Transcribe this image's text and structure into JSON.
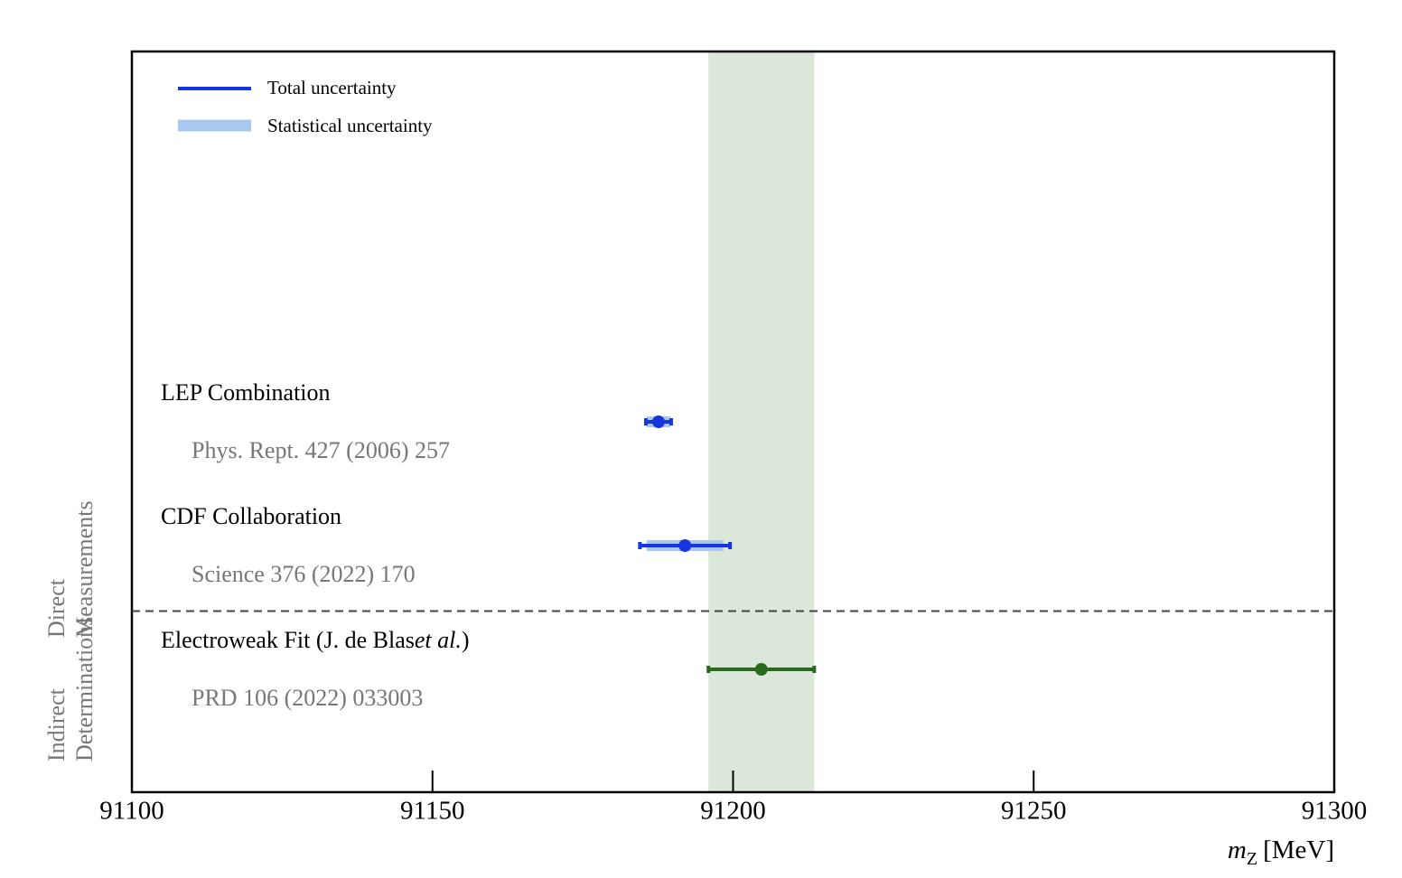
{
  "chart_data": {
    "type": "errorbar",
    "xlabel": {
      "symbol": "m",
      "subscript": "Z",
      "unit": "[MeV]"
    },
    "xlim": [
      91100,
      91300
    ],
    "xticks": [
      91100,
      91150,
      91200,
      91250,
      91300
    ],
    "legend": {
      "position": "upper left",
      "total": "Total uncertainty",
      "stat": "Statistical uncertainty"
    },
    "total_color": "#1535e0",
    "stat_color": "#a8c8f2",
    "band_color": "#dbe7d8",
    "groups": [
      {
        "lines": [
          "Direct",
          "Measurements"
        ],
        "rows": [
          {
            "label": [
              {
                "text": "LEP Combination"
              }
            ],
            "reference": "Phys. Rept. 427 (2006) 257",
            "value": 91187.6,
            "error": 2.1,
            "stat_error": 2.0,
            "color": "#1535e0"
          },
          {
            "label": [
              {
                "text": "CDF Collaboration"
              }
            ],
            "reference": "Science 376 (2022) 170",
            "value": 91192.0,
            "error": 7.5,
            "stat_error": 6.4,
            "color": "#1535e0"
          }
        ]
      },
      {
        "lines": [
          "Indirect",
          "Determinations"
        ],
        "rows": [
          {
            "label": [
              {
                "text": "Electroweak Fit (J. de Blas"
              },
              {
                "text": "et al.",
                "italic": true
              },
              {
                "text": ")"
              }
            ],
            "reference": "PRD 106 (2022) 033003",
            "value": 91204.7,
            "error": 8.8,
            "color": "#2a6a1e",
            "band": true
          }
        ]
      }
    ]
  }
}
